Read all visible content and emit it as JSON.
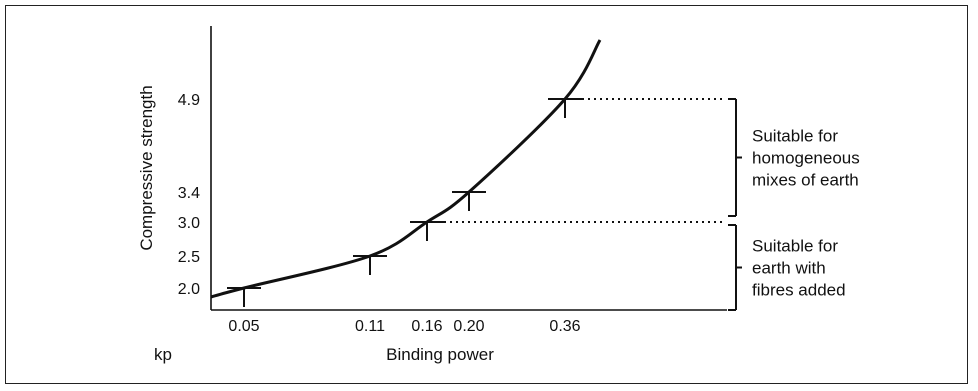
{
  "chart_data": {
    "type": "line",
    "xlabel": "Binding power",
    "ylabel": "Compressive strength",
    "x_unit": "kp",
    "x_ticks": [
      "0.05",
      "0.11",
      "0.16",
      "0.20",
      "0.36"
    ],
    "y_ticks": [
      "2.0",
      "2.5",
      "3.0",
      "3.4",
      "4.9"
    ],
    "points": [
      {
        "x": 0.05,
        "y": 2.0
      },
      {
        "x": 0.11,
        "y": 2.5
      },
      {
        "x": 0.16,
        "y": 3.0
      },
      {
        "x": 0.2,
        "y": 3.4
      },
      {
        "x": 0.36,
        "y": 4.9
      }
    ],
    "curve_x_range": [
      0.0,
      0.42
    ],
    "grid": false,
    "annotations": [
      {
        "lines": [
          "Suitable for",
          "homogeneous",
          "mixes of earth"
        ],
        "y_range": [
          3.0,
          4.9
        ]
      },
      {
        "lines": [
          "Suitable for",
          "earth with",
          "fibres added"
        ],
        "y_range": [
          1.9,
          3.0
        ]
      }
    ]
  }
}
